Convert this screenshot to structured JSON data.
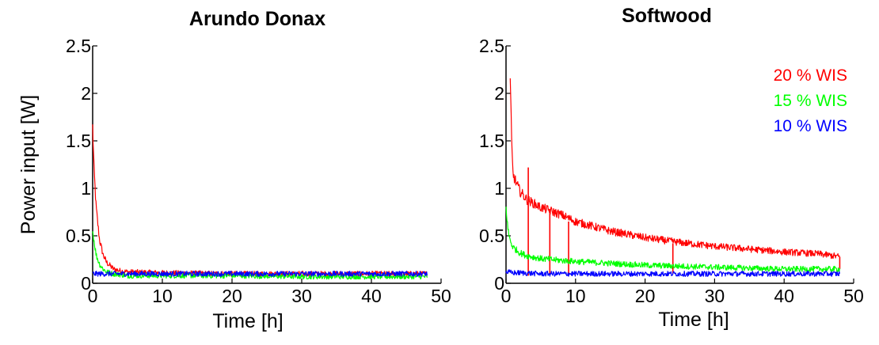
{
  "figure": {
    "ylabel": "Power input [W]"
  },
  "chart_data": [
    {
      "type": "line",
      "title": "Arundo Donax",
      "xlabel": "Time [h]",
      "ylabel": "Power input [W]",
      "xlim": [
        0,
        50
      ],
      "ylim": [
        0,
        2.5
      ],
      "xticks": [
        0,
        10,
        20,
        30,
        40,
        50
      ],
      "yticks": [
        0,
        0.5,
        1,
        1.5,
        2,
        2.5
      ],
      "xtick_labels": [
        "0",
        "10",
        "20",
        "30",
        "40",
        "50"
      ],
      "ytick_labels": [
        "0",
        "0.5",
        "1",
        "1.5",
        "2",
        "2.5"
      ],
      "legend": null,
      "series": [
        {
          "name": "20 % WIS",
          "color": "#ff0000",
          "x": [
            0,
            0.2,
            0.5,
            1,
            1.5,
            2,
            3,
            4,
            5,
            10,
            20,
            30,
            40,
            48
          ],
          "y": [
            1.65,
            1.2,
            0.8,
            0.45,
            0.3,
            0.22,
            0.15,
            0.13,
            0.12,
            0.11,
            0.1,
            0.1,
            0.1,
            0.1
          ]
        },
        {
          "name": "15 % WIS",
          "color": "#00ff00",
          "x": [
            0,
            0.2,
            0.5,
            1,
            1.5,
            2,
            3,
            5,
            10,
            20,
            30,
            40,
            48
          ],
          "y": [
            0.55,
            0.45,
            0.3,
            0.2,
            0.15,
            0.12,
            0.1,
            0.08,
            0.08,
            0.08,
            0.07,
            0.07,
            0.07
          ]
        },
        {
          "name": "10 % WIS",
          "color": "#0000ff",
          "x": [
            0,
            1,
            2,
            5,
            10,
            20,
            30,
            40,
            48
          ],
          "y": [
            0.1,
            0.1,
            0.1,
            0.1,
            0.1,
            0.1,
            0.1,
            0.1,
            0.1
          ]
        }
      ]
    },
    {
      "type": "line",
      "title": "Softwood",
      "xlabel": "Time [h]",
      "ylabel": "",
      "xlim": [
        0,
        50
      ],
      "ylim": [
        0,
        2.5
      ],
      "xticks": [
        0,
        10,
        20,
        30,
        40,
        50
      ],
      "yticks": [
        0,
        0.5,
        1,
        1.5,
        2,
        2.5
      ],
      "xtick_labels": [
        "0",
        "10",
        "20",
        "30",
        "40",
        "50"
      ],
      "ytick_labels": [
        "0",
        "0.5",
        "1",
        "1.5",
        "2",
        "2.5"
      ],
      "legend": "top-right",
      "series": [
        {
          "name": "20 % WIS",
          "color": "#ff0000",
          "x": [
            0.6,
            0.8,
            1,
            1.5,
            2,
            3,
            5,
            8,
            10,
            15,
            20,
            25,
            30,
            35,
            40,
            45,
            48
          ],
          "y": [
            2.15,
            1.5,
            1.15,
            1.05,
            0.97,
            0.88,
            0.8,
            0.72,
            0.65,
            0.55,
            0.48,
            0.43,
            0.39,
            0.36,
            0.33,
            0.31,
            0.28
          ],
          "spikes": [
            {
              "x": 3.2,
              "low": 0.08,
              "high": 1.22
            },
            {
              "x": 6.3,
              "low": 0.1,
              "high": 0.78
            },
            {
              "x": 9.0,
              "low": 0.08,
              "high": 0.65
            },
            {
              "x": 24.0,
              "low": 0.1,
              "high": 0.42
            },
            {
              "x": 48.0,
              "low": 0.15,
              "high": 0.28
            }
          ]
        },
        {
          "name": "15 % WIS",
          "color": "#00ff00",
          "x": [
            0,
            0.3,
            0.6,
            1,
            2,
            3,
            5,
            8,
            10,
            15,
            20,
            25,
            30,
            35,
            40,
            45,
            48
          ],
          "y": [
            0.8,
            0.55,
            0.45,
            0.38,
            0.32,
            0.29,
            0.26,
            0.24,
            0.23,
            0.21,
            0.19,
            0.18,
            0.17,
            0.16,
            0.15,
            0.15,
            0.15
          ]
        },
        {
          "name": "10 % WIS",
          "color": "#0000ff",
          "x": [
            0,
            1,
            2,
            5,
            10,
            20,
            30,
            40,
            48
          ],
          "y": [
            0.12,
            0.11,
            0.11,
            0.1,
            0.1,
            0.1,
            0.1,
            0.1,
            0.1
          ]
        }
      ]
    }
  ]
}
